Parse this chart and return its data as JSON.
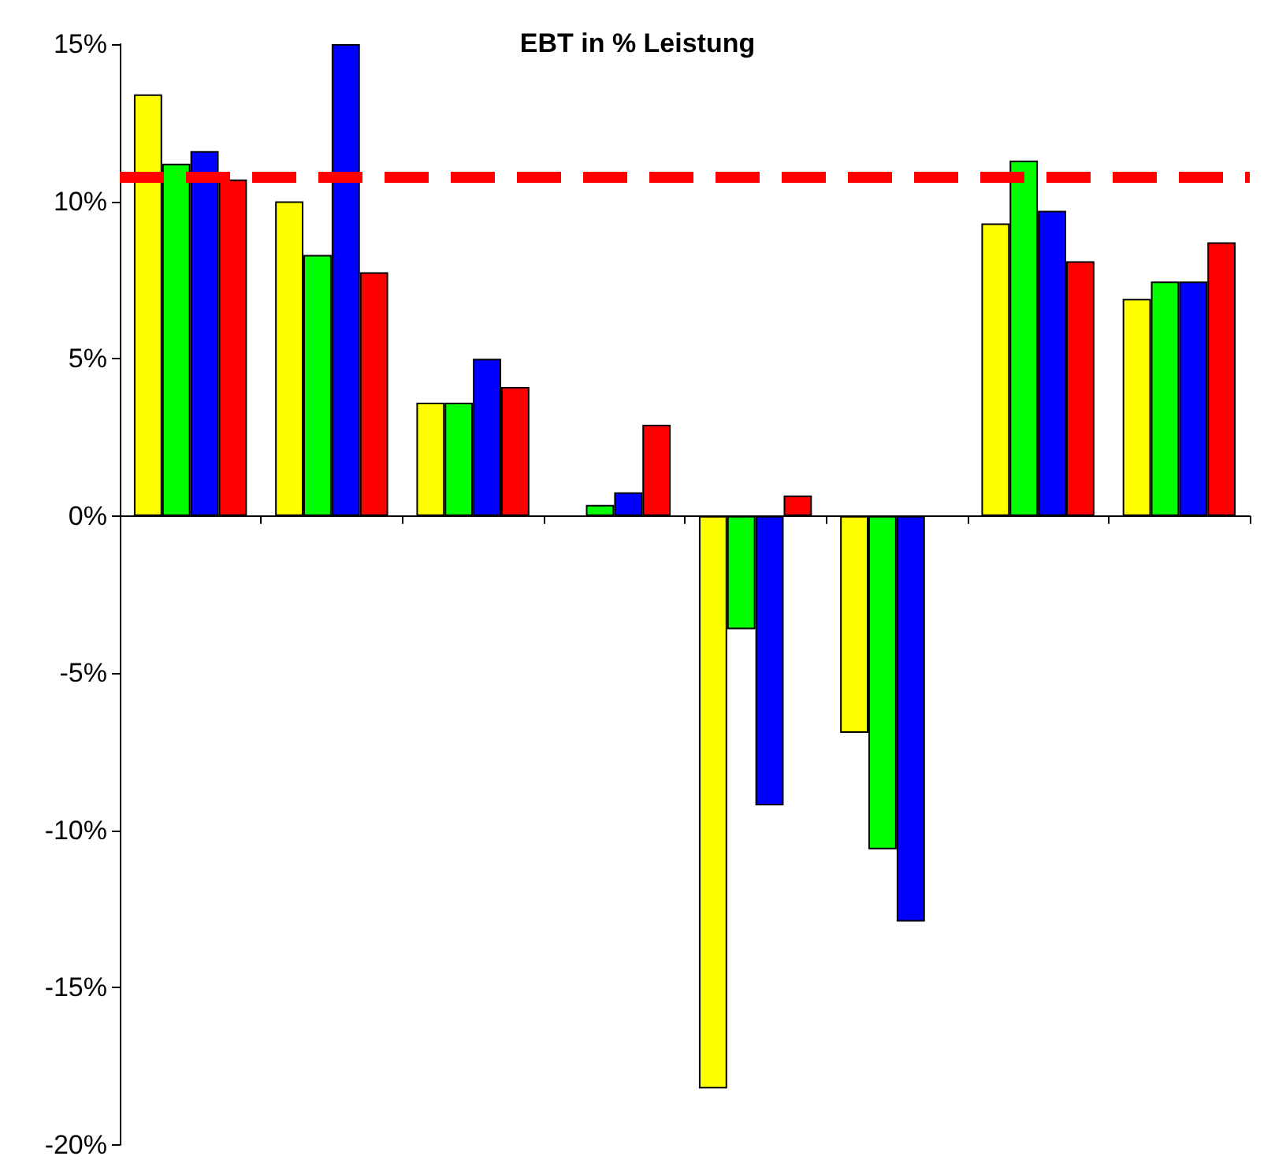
{
  "chart_data": {
    "type": "bar",
    "title": "EBT in % Leistung",
    "categories": [
      null,
      null,
      null,
      null,
      null,
      null,
      null,
      null
    ],
    "series": [
      {
        "color": "#ffff00",
        "values": [
          13.4,
          10.0,
          3.6,
          null,
          -18.2,
          -6.9,
          9.3,
          6.9
        ]
      },
      {
        "color": "#00ff00",
        "values": [
          11.2,
          8.3,
          3.6,
          0.35,
          -3.6,
          -10.6,
          11.3,
          7.45
        ]
      },
      {
        "color": "#0000ff",
        "values": [
          11.6,
          15.0,
          5.0,
          0.75,
          -9.2,
          -12.9,
          9.7,
          7.45
        ]
      },
      {
        "color": "#ff0000",
        "values": [
          10.7,
          7.75,
          4.1,
          2.9,
          0.65,
          null,
          8.1,
          8.7
        ]
      }
    ],
    "ylim": [
      -20,
      15
    ],
    "yticks": [
      {
        "value": -20,
        "label": "-20%"
      },
      {
        "value": -15,
        "label": "-15%"
      },
      {
        "value": -10,
        "label": "-10%"
      },
      {
        "value": -5,
        "label": "-5%"
      },
      {
        "value": 0,
        "label": "0%"
      },
      {
        "value": 5,
        "label": "5%"
      },
      {
        "value": 10,
        "label": "10%"
      },
      {
        "value": 15,
        "label": "15%"
      }
    ],
    "ref_lines": [
      {
        "axis": "y",
        "value": 10.8,
        "color": "#ff0000",
        "line_style": "dashed"
      }
    ]
  }
}
